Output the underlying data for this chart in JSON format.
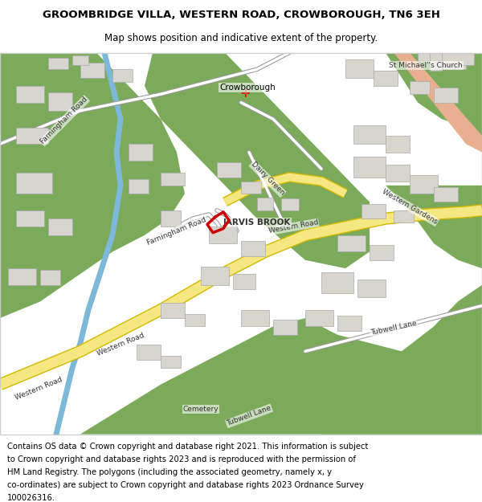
{
  "title_line1": "GROOMBRIDGE VILLA, WESTERN ROAD, CROWBOROUGH, TN6 3EH",
  "title_line2": "Map shows position and indicative extent of the property.",
  "footer_lines": [
    "Contains OS data © Crown copyright and database right 2021. This information is subject",
    "to Crown copyright and database rights 2023 and is reproduced with the permission of",
    "HM Land Registry. The polygons (including the associated geometry, namely x, y",
    "co-ordinates) are subject to Crown copyright and database rights 2023 Ordnance Survey",
    "100026316."
  ],
  "title_fontsize": 9.5,
  "subtitle_fontsize": 8.5,
  "footer_fontsize": 7.2,
  "map_bg": "#f5f3ef",
  "green_color": "#7aaa5a",
  "road_yellow": "#f5e882",
  "road_outline": "#d4b800",
  "building_color": "#d8d5cf",
  "water_color": "#7db8d8",
  "pink_road": "#e8b090",
  "plot_outline": "#cc0000",
  "fig_width": 6.0,
  "fig_height": 6.25
}
